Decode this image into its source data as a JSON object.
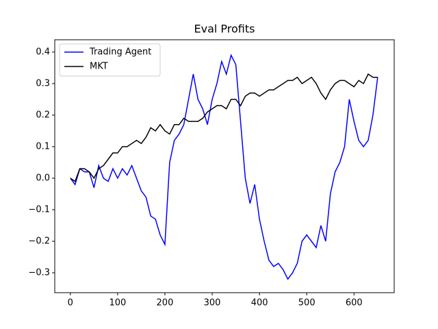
{
  "chart_data": {
    "type": "line",
    "title": "Eval Profits",
    "x": [
      0,
      10,
      20,
      30,
      40,
      50,
      60,
      70,
      80,
      90,
      100,
      110,
      120,
      130,
      140,
      150,
      160,
      170,
      180,
      190,
      200,
      210,
      220,
      230,
      240,
      250,
      260,
      270,
      280,
      290,
      300,
      310,
      320,
      330,
      340,
      350,
      360,
      370,
      380,
      390,
      400,
      410,
      420,
      430,
      440,
      450,
      460,
      470,
      480,
      490,
      500,
      510,
      520,
      530,
      540,
      550,
      560,
      570,
      580,
      590,
      600,
      610,
      620,
      630,
      640,
      650
    ],
    "series": [
      {
        "name": "Trading Agent",
        "color": "#0000ff",
        "values": [
          0.0,
          -0.02,
          0.03,
          0.02,
          0.02,
          -0.03,
          0.04,
          0.0,
          -0.01,
          0.03,
          0.0,
          0.03,
          0.01,
          0.04,
          0.0,
          -0.04,
          -0.06,
          -0.12,
          -0.13,
          -0.18,
          -0.21,
          0.05,
          0.12,
          0.14,
          0.17,
          0.25,
          0.33,
          0.25,
          0.22,
          0.17,
          0.25,
          0.3,
          0.37,
          0.33,
          0.39,
          0.36,
          0.18,
          0.0,
          -0.08,
          -0.02,
          -0.13,
          -0.2,
          -0.26,
          -0.28,
          -0.27,
          -0.29,
          -0.32,
          -0.3,
          -0.27,
          -0.2,
          -0.18,
          -0.2,
          -0.22,
          -0.15,
          -0.2,
          -0.05,
          0.02,
          0.05,
          0.1,
          0.25,
          0.18,
          0.12,
          0.1,
          0.12,
          0.2,
          0.32
        ]
      },
      {
        "name": "MKT",
        "color": "#000000",
        "values": [
          0.0,
          -0.01,
          0.03,
          0.03,
          0.02,
          0.0,
          0.03,
          0.04,
          0.06,
          0.08,
          0.08,
          0.1,
          0.1,
          0.11,
          0.12,
          0.11,
          0.13,
          0.16,
          0.15,
          0.17,
          0.15,
          0.14,
          0.17,
          0.17,
          0.19,
          0.18,
          0.18,
          0.18,
          0.19,
          0.21,
          0.22,
          0.23,
          0.23,
          0.22,
          0.25,
          0.25,
          0.23,
          0.26,
          0.27,
          0.27,
          0.26,
          0.27,
          0.28,
          0.28,
          0.29,
          0.3,
          0.31,
          0.31,
          0.32,
          0.3,
          0.31,
          0.32,
          0.3,
          0.27,
          0.25,
          0.28,
          0.3,
          0.31,
          0.31,
          0.3,
          0.29,
          0.31,
          0.3,
          0.33,
          0.32,
          0.32
        ]
      }
    ],
    "xlim": [
      -33,
      685
    ],
    "ylim": [
      -0.363,
      0.439
    ],
    "xticks": [
      0,
      100,
      200,
      300,
      400,
      500,
      600
    ],
    "yticks": [
      {
        "value": -0.3,
        "label": "−0.3"
      },
      {
        "value": -0.2,
        "label": "−0.2"
      },
      {
        "value": -0.1,
        "label": "−0.1"
      },
      {
        "value": 0,
        "label": "0.0"
      },
      0.1,
      0.2,
      0.3,
      0.4
    ],
    "legend": "upper left"
  }
}
